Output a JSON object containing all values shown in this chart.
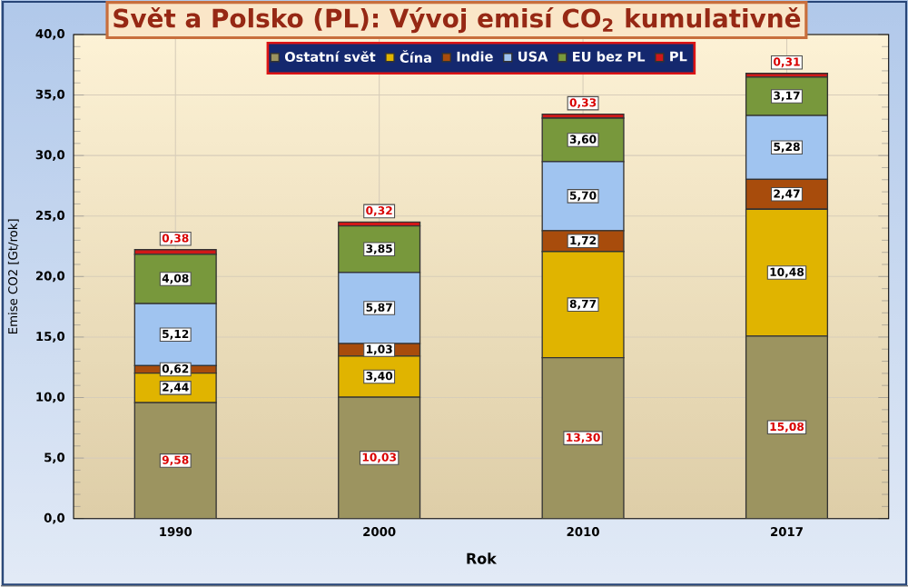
{
  "chart_data": {
    "type": "bar",
    "stacked": true,
    "title": "Svět a Polsko (PL): Vývoj emisí CO$_{2}$ kumulativně",
    "xlabel": "Rok",
    "ylabel": "Emise CO2 [Gt/rok]",
    "categories": [
      "1990",
      "2000",
      "2010",
      "2017"
    ],
    "series": [
      {
        "name": "Ostatní svět",
        "color": "#9c9460",
        "values": [
          9.58,
          10.03,
          13.3,
          15.08
        ],
        "value_labels": [
          "9,58",
          "10,03",
          "13,30",
          "15,08"
        ]
      },
      {
        "name": "Čína",
        "color": "#e0b400",
        "values": [
          2.44,
          3.4,
          8.77,
          10.48
        ],
        "value_labels": [
          "2,44",
          "3,40",
          "8,77",
          "10,48"
        ]
      },
      {
        "name": "Indie",
        "color": "#a84c0c",
        "values": [
          0.62,
          1.03,
          1.72,
          2.47
        ],
        "value_labels": [
          "0,62",
          "1,03",
          "1,72",
          "2,47"
        ]
      },
      {
        "name": "USA",
        "color": "#a0c4f0",
        "values": [
          5.12,
          5.87,
          5.7,
          5.28
        ],
        "value_labels": [
          "5,12",
          "5,87",
          "5,70",
          "5,28"
        ]
      },
      {
        "name": "EU bez PL",
        "color": "#78983c",
        "values": [
          4.08,
          3.85,
          3.6,
          3.17
        ],
        "value_labels": [
          "4,08",
          "3,85",
          "3,60",
          "3,17"
        ]
      },
      {
        "name": "PL",
        "color": "#d01818",
        "values": [
          0.38,
          0.32,
          0.33,
          0.31
        ],
        "value_labels": [
          "0,38",
          "0,32",
          "0,33",
          "0,31"
        ]
      }
    ],
    "ylim": [
      0,
      40
    ],
    "yticks": [
      {
        "value": 0,
        "label": "0,0"
      },
      {
        "value": 5,
        "label": "5,0"
      },
      {
        "value": 10,
        "label": "10,0"
      },
      {
        "value": 15,
        "label": "15,0"
      },
      {
        "value": 20,
        "label": "20,0"
      },
      {
        "value": 25,
        "label": "25,0"
      },
      {
        "value": 30,
        "label": "30,0"
      },
      {
        "value": 35,
        "label": "35,0"
      },
      {
        "value": 40,
        "label": "40,0"
      }
    ],
    "grid": true,
    "legend": "top"
  }
}
